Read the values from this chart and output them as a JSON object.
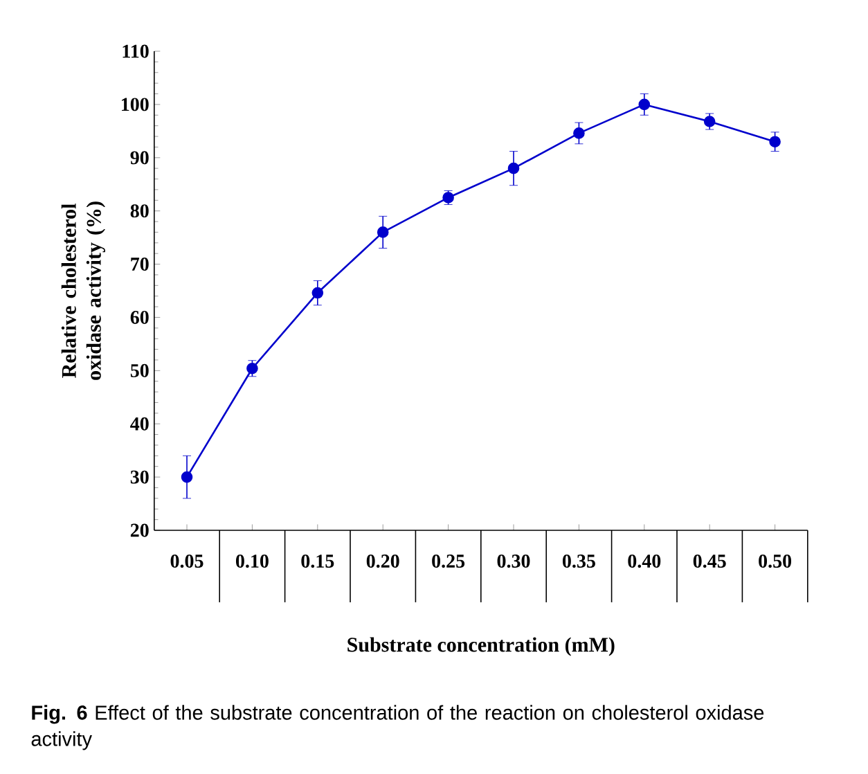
{
  "chart_data": {
    "type": "line",
    "xlabel": "Substrate concentration (mM)",
    "ylabel": "Relative cholesterol oxidase activity (%)",
    "categories": [
      "0.05",
      "0.10",
      "0.15",
      "0.20",
      "0.25",
      "0.30",
      "0.35",
      "0.40",
      "0.45",
      "0.50"
    ],
    "values": [
      30,
      50.4,
      64.6,
      76,
      82.5,
      88,
      94.6,
      100,
      96.8,
      93
    ],
    "errors": [
      4,
      1.5,
      2.3,
      3,
      1.3,
      3.2,
      2,
      2,
      1.5,
      1.8
    ],
    "color": "#0000cc",
    "marker": "circle",
    "line_style": "solid",
    "ylim": [
      20,
      110
    ],
    "yticks": [
      20,
      30,
      40,
      50,
      60,
      70,
      80,
      90,
      100,
      110
    ],
    "grid": false,
    "annotations": [
      "**Fig. 6** Effect of the substrate concentration of the reaction on cholesterol oxidase activity"
    ]
  }
}
